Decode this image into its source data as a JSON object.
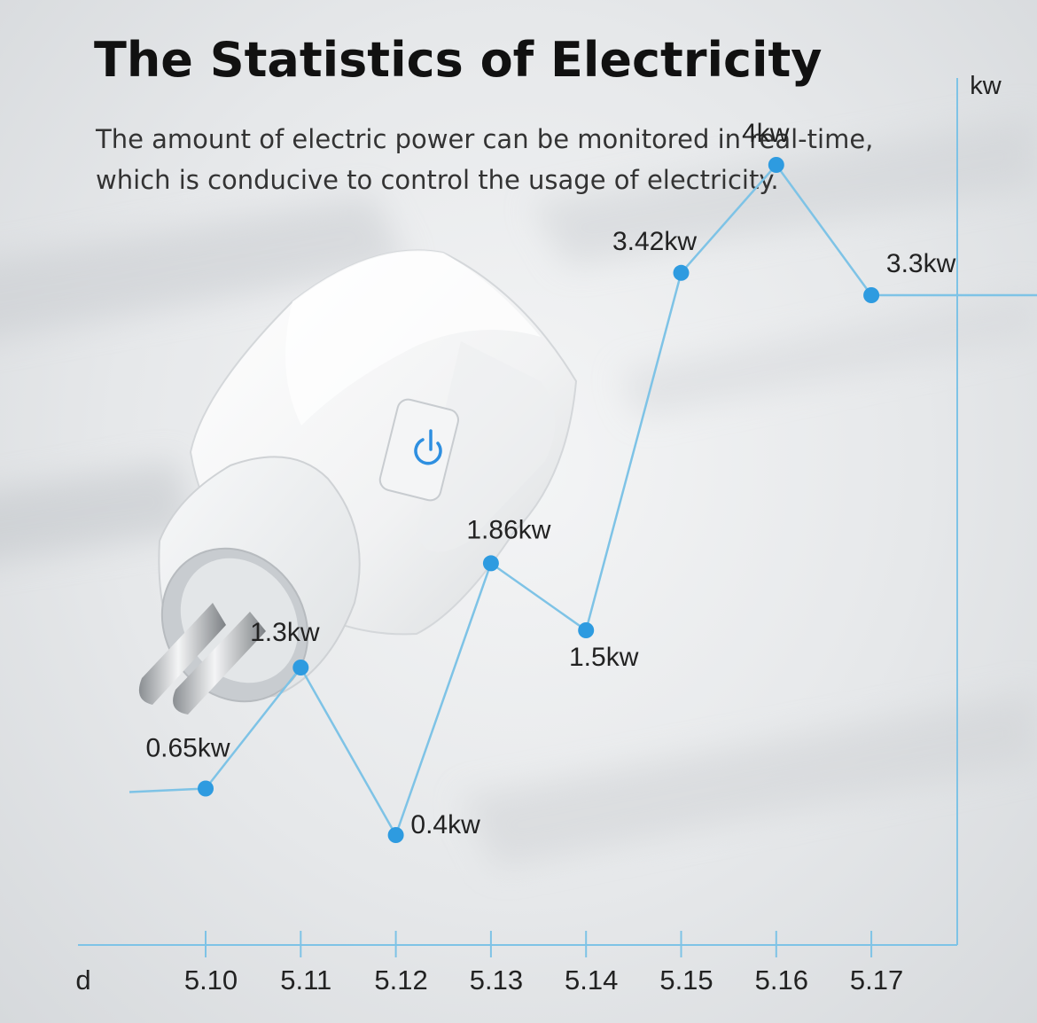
{
  "header": {
    "title": "The Statistics of Electricity",
    "subtitle_line1": "The amount of electric power can be monitored in real-time,",
    "subtitle_line2": "which is conducive to control the usage of electricity."
  },
  "chart_data": {
    "type": "line",
    "x_unit_label": "d",
    "y_unit_label": "kw",
    "categories": [
      "5.10",
      "5.11",
      "5.12",
      "5.13",
      "5.14",
      "5.15",
      "5.16",
      "5.17"
    ],
    "values": [
      0.65,
      1.3,
      0.4,
      1.86,
      1.5,
      3.42,
      4,
      3.3
    ],
    "data_labels": [
      "0.65kw",
      "1.3kw",
      "0.4kw",
      "1.86kw",
      "1.5kw",
      "3.42kw",
      "4kw",
      "3.3kw"
    ],
    "ylim": [
      0,
      4.9
    ],
    "grid": false,
    "legend": "none"
  },
  "colors": {
    "line": "#7ec3e6",
    "point": "#2e9be0",
    "axis": "#7ec3e6",
    "text": "#222222"
  },
  "product": {
    "icon": "power-icon",
    "accent": "#2e8fe0"
  }
}
